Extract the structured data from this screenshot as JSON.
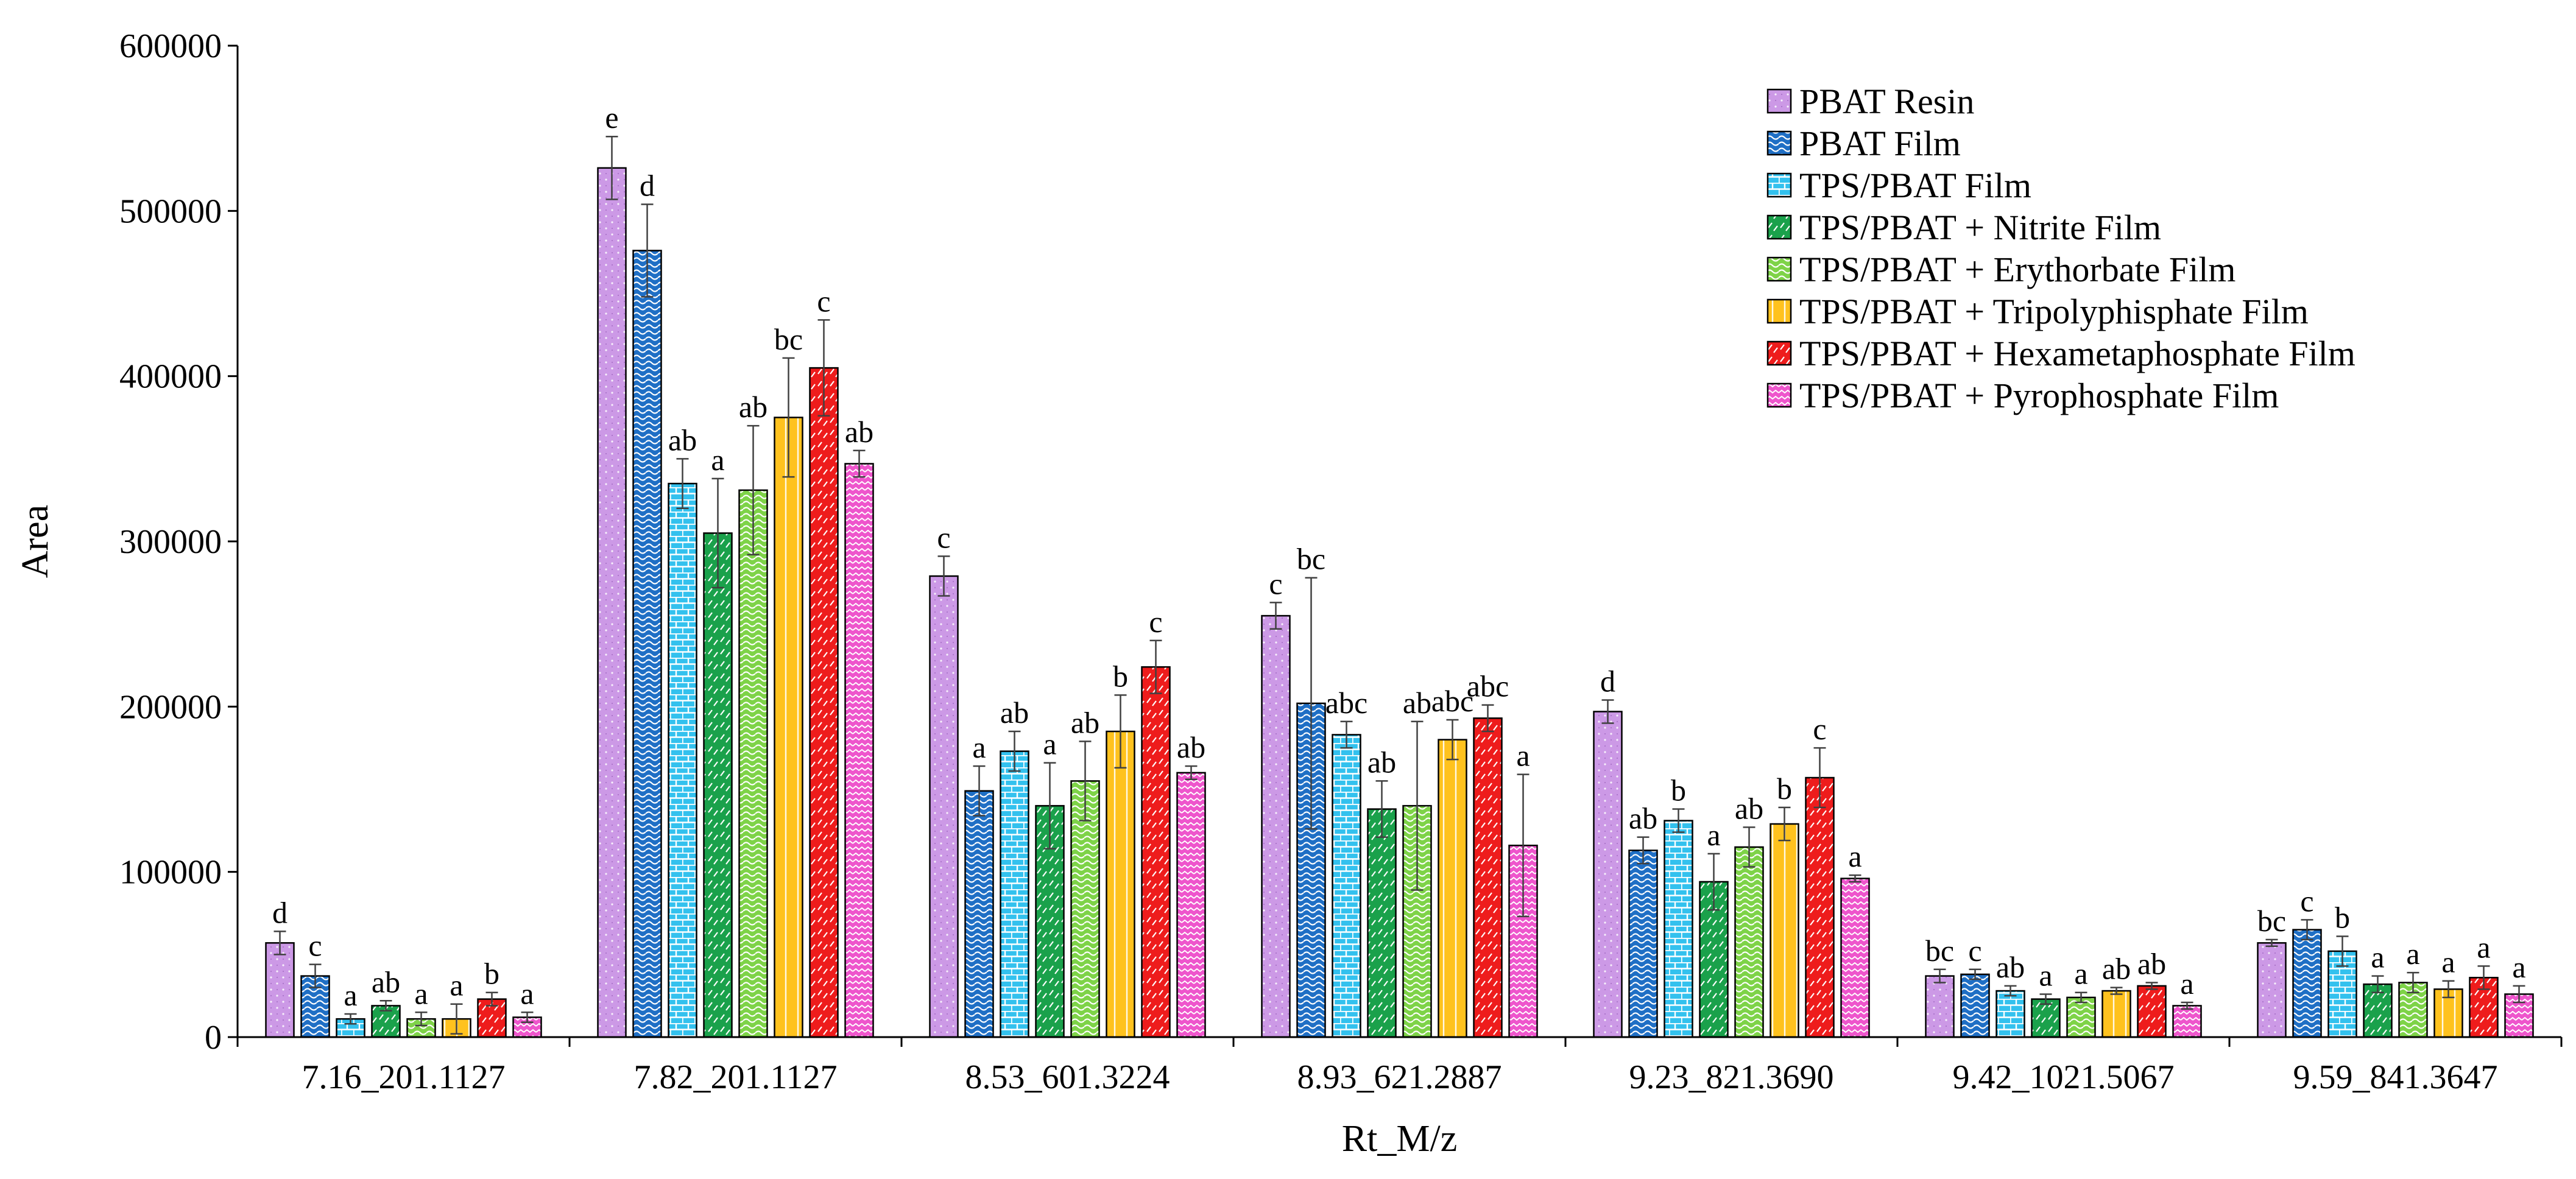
{
  "chart_data": {
    "type": "bar",
    "title": "",
    "xlabel": "Rt_M/z",
    "ylabel": "Area",
    "ylim": [
      0,
      600000
    ],
    "yticks": [
      0,
      100000,
      200000,
      300000,
      400000,
      500000,
      600000
    ],
    "ytick_labels": [
      "0",
      "100000",
      "200000",
      "300000",
      "400000",
      "500000",
      "600000"
    ],
    "grid": false,
    "legend_position": "top-right",
    "categories": [
      "7.16_201.1127",
      "7.82_201.1127",
      "8.53_601.3224",
      "8.93_621.2887",
      "9.23_821.3690",
      "9.42_1021.5067",
      "9.59_841.3647"
    ],
    "series": [
      {
        "name": "PBAT Resin",
        "color": "#cc99e6",
        "pattern": "dots",
        "values": [
          57000,
          526000,
          279000,
          255000,
          197000,
          37000,
          57000
        ],
        "errors": [
          7000,
          19000,
          12000,
          8000,
          7000,
          4000,
          2000
        ],
        "labels": [
          "d",
          "e",
          "c",
          "c",
          "d",
          "bc",
          "bc"
        ]
      },
      {
        "name": "PBAT Film",
        "color": "#1f6fc5",
        "pattern": "waves",
        "values": [
          37000,
          476000,
          149000,
          202000,
          113000,
          38000,
          65000
        ],
        "errors": [
          7000,
          28000,
          15000,
          76000,
          8000,
          3000,
          6000
        ],
        "labels": [
          "c",
          "d",
          "a",
          "bc",
          "ab",
          "c",
          "c"
        ]
      },
      {
        "name": "TPS/PBAT Film",
        "color": "#33c1ee",
        "pattern": "bricks",
        "values": [
          11000,
          335000,
          173000,
          183000,
          131000,
          28000,
          52000
        ],
        "errors": [
          3000,
          15000,
          12000,
          8000,
          7000,
          3000,
          9000
        ],
        "labels": [
          "a",
          "ab",
          "ab",
          "abc",
          "b",
          "ab",
          "b"
        ]
      },
      {
        "name": "TPS/PBAT + Nitrite Film",
        "color": "#1aa14b",
        "pattern": "dashes",
        "values": [
          19000,
          305000,
          140000,
          138000,
          94000,
          23000,
          32000
        ],
        "errors": [
          3000,
          33000,
          26000,
          17000,
          17000,
          3000,
          5000
        ],
        "labels": [
          "ab",
          "a",
          "a",
          "ab",
          "a",
          "a",
          "a"
        ]
      },
      {
        "name": "TPS/PBAT + Erythorbate Film",
        "color": "#7ed348",
        "pattern": "waves",
        "values": [
          11000,
          331000,
          155000,
          140000,
          115000,
          24000,
          33000
        ],
        "errors": [
          4000,
          39000,
          24000,
          51000,
          12000,
          3000,
          6000
        ],
        "labels": [
          "a",
          "ab",
          "ab",
          "ab",
          "ab",
          "a",
          "a"
        ]
      },
      {
        "name": "TPS/PBAT + Tripolyphisphate Film",
        "color": "#ffc21e",
        "pattern": "lines",
        "values": [
          11000,
          375000,
          185000,
          180000,
          129000,
          28000,
          29000
        ],
        "errors": [
          9000,
          36000,
          22000,
          12000,
          10000,
          2000,
          5000
        ],
        "labels": [
          "a",
          "bc",
          "b",
          "abc",
          "b",
          "ab",
          "a"
        ]
      },
      {
        "name": "TPS/PBAT + Hexametaphosphate Film",
        "color": "#ee1c1c",
        "pattern": "dashes",
        "values": [
          23000,
          405000,
          224000,
          193000,
          157000,
          31000,
          36000
        ],
        "errors": [
          4000,
          29000,
          16000,
          8000,
          18000,
          2000,
          7000
        ],
        "labels": [
          "b",
          "c",
          "c",
          "abc",
          "c",
          "ab",
          "a"
        ]
      },
      {
        "name": "TPS/PBAT + Pyrophosphate Film",
        "color": "#ee55cc",
        "pattern": "zigzag",
        "values": [
          12000,
          347000,
          160000,
          116000,
          96000,
          19000,
          26000
        ],
        "errors": [
          3000,
          8000,
          4000,
          43000,
          2000,
          2000,
          5000
        ],
        "labels": [
          "a",
          "ab",
          "ab",
          "a",
          "a",
          "a",
          "a"
        ]
      }
    ]
  }
}
